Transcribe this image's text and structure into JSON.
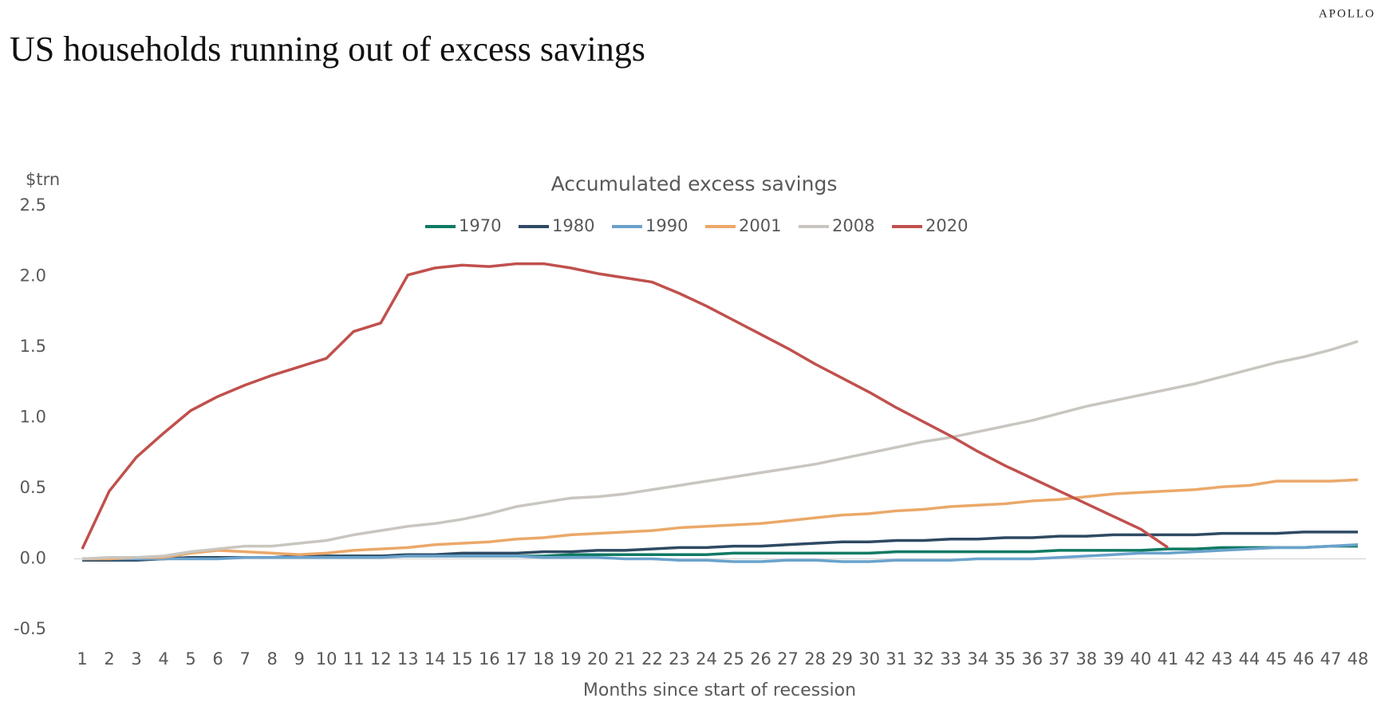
{
  "brand": "APOLLO",
  "chart_data": {
    "type": "line",
    "title": "US households running out of excess savings",
    "subtitle": "Accumulated excess savings",
    "y_label": "$trn",
    "x_label": "Months since start of recession",
    "x": [
      1,
      2,
      3,
      4,
      5,
      6,
      7,
      8,
      9,
      10,
      11,
      12,
      13,
      14,
      15,
      16,
      17,
      18,
      19,
      20,
      21,
      22,
      23,
      24,
      25,
      26,
      27,
      28,
      29,
      30,
      31,
      32,
      33,
      34,
      35,
      36,
      37,
      38,
      39,
      40,
      41,
      42,
      43,
      44,
      45,
      46,
      47,
      48
    ],
    "xlim": [
      1,
      48
    ],
    "xticks": [
      1,
      2,
      3,
      4,
      5,
      6,
      7,
      8,
      9,
      10,
      11,
      12,
      13,
      14,
      15,
      16,
      17,
      18,
      19,
      20,
      21,
      22,
      23,
      24,
      25,
      26,
      27,
      28,
      29,
      30,
      31,
      32,
      33,
      34,
      35,
      36,
      37,
      38,
      39,
      40,
      41,
      42,
      43,
      44,
      45,
      46,
      47,
      48
    ],
    "ylim": [
      -0.5,
      2.5
    ],
    "yticks": [
      -0.5,
      {
        "value": 0,
        "label": "0.0"
      },
      0.5,
      {
        "value": 1,
        "label": "1.0"
      },
      1.5,
      {
        "value": 2,
        "label": "2.0"
      },
      2.5
    ],
    "grid": false,
    "legend": "top",
    "series": [
      {
        "name": "1970",
        "color": "#0f7a63",
        "values": [
          0,
          0,
          0,
          0,
          0.01,
          0.01,
          0.01,
          0.01,
          0.01,
          0.02,
          0.02,
          0.02,
          0.02,
          0.02,
          0.02,
          0.02,
          0.02,
          0.02,
          0.03,
          0.03,
          0.03,
          0.03,
          0.03,
          0.03,
          0.04,
          0.04,
          0.04,
          0.04,
          0.04,
          0.04,
          0.05,
          0.05,
          0.05,
          0.05,
          0.05,
          0.05,
          0.06,
          0.06,
          0.06,
          0.06,
          0.07,
          0.07,
          0.08,
          0.08,
          0.08,
          0.08,
          0.09,
          0.09
        ]
      },
      {
        "name": "1980",
        "color": "#2e4a63",
        "values": [
          -0.01,
          -0.01,
          -0.01,
          0,
          0.01,
          0.01,
          0.01,
          0.01,
          0.02,
          0.02,
          0.02,
          0.02,
          0.03,
          0.03,
          0.04,
          0.04,
          0.04,
          0.05,
          0.05,
          0.06,
          0.06,
          0.07,
          0.08,
          0.08,
          0.09,
          0.09,
          0.1,
          0.11,
          0.12,
          0.12,
          0.13,
          0.13,
          0.14,
          0.14,
          0.15,
          0.15,
          0.16,
          0.16,
          0.17,
          0.17,
          0.17,
          0.17,
          0.18,
          0.18,
          0.18,
          0.19,
          0.19,
          0.19
        ]
      },
      {
        "name": "1990",
        "color": "#6aa2cc",
        "values": [
          0,
          0,
          0,
          0,
          0,
          0,
          0.01,
          0.01,
          0.01,
          0.01,
          0.01,
          0.01,
          0.02,
          0.02,
          0.02,
          0.02,
          0.02,
          0.01,
          0.01,
          0.01,
          0,
          0,
          -0.01,
          -0.01,
          -0.02,
          -0.02,
          -0.01,
          -0.01,
          -0.02,
          -0.02,
          -0.01,
          -0.01,
          -0.01,
          0,
          0,
          0,
          0.01,
          0.02,
          0.03,
          0.04,
          0.04,
          0.05,
          0.06,
          0.07,
          0.08,
          0.08,
          0.09,
          0.1
        ]
      },
      {
        "name": "2001",
        "color": "#eba869",
        "values": [
          0,
          0,
          0.01,
          0.01,
          0.04,
          0.06,
          0.05,
          0.04,
          0.03,
          0.04,
          0.06,
          0.07,
          0.08,
          0.1,
          0.11,
          0.12,
          0.14,
          0.15,
          0.17,
          0.18,
          0.19,
          0.2,
          0.22,
          0.23,
          0.24,
          0.25,
          0.27,
          0.29,
          0.31,
          0.32,
          0.34,
          0.35,
          0.37,
          0.38,
          0.39,
          0.41,
          0.42,
          0.44,
          0.46,
          0.47,
          0.48,
          0.49,
          0.51,
          0.52,
          0.55,
          0.55,
          0.55,
          0.56
        ]
      },
      {
        "name": "2008",
        "color": "#c9c6c0",
        "values": [
          0,
          0.01,
          0.01,
          0.02,
          0.05,
          0.07,
          0.09,
          0.09,
          0.11,
          0.13,
          0.17,
          0.2,
          0.23,
          0.25,
          0.28,
          0.32,
          0.37,
          0.4,
          0.43,
          0.44,
          0.46,
          0.49,
          0.52,
          0.55,
          0.58,
          0.61,
          0.64,
          0.67,
          0.71,
          0.75,
          0.79,
          0.83,
          0.86,
          0.9,
          0.94,
          0.98,
          1.03,
          1.08,
          1.12,
          1.16,
          1.2,
          1.24,
          1.29,
          1.34,
          1.39,
          1.43,
          1.48,
          1.54
        ]
      },
      {
        "name": "2020",
        "color": "#c0504d",
        "values": [
          0.07,
          0.48,
          0.72,
          0.89,
          1.05,
          1.15,
          1.23,
          1.3,
          1.36,
          1.42,
          1.61,
          1.67,
          2.01,
          2.06,
          2.08,
          2.07,
          2.09,
          2.09,
          2.06,
          2.02,
          1.99,
          1.96,
          1.88,
          1.79,
          1.69,
          1.59,
          1.49,
          1.38,
          1.28,
          1.18,
          1.07,
          0.97,
          0.87,
          0.76,
          0.66,
          0.57,
          0.48,
          0.39,
          0.3,
          0.21,
          0.08,
          null,
          null,
          null,
          null,
          null,
          null,
          null
        ]
      }
    ]
  }
}
